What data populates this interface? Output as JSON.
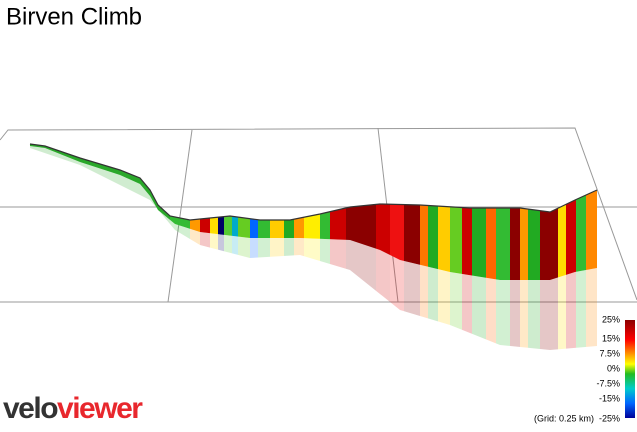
{
  "header": {
    "title": "Birven Climb"
  },
  "legend": {
    "labels": [
      "25%",
      "15%",
      "7.5%",
      "0%",
      "-7.5%",
      "-15%",
      "-25%"
    ],
    "note": "(Grid: 0.25 km)"
  },
  "logo": {
    "first": "velo",
    "second": "viewer"
  }
}
